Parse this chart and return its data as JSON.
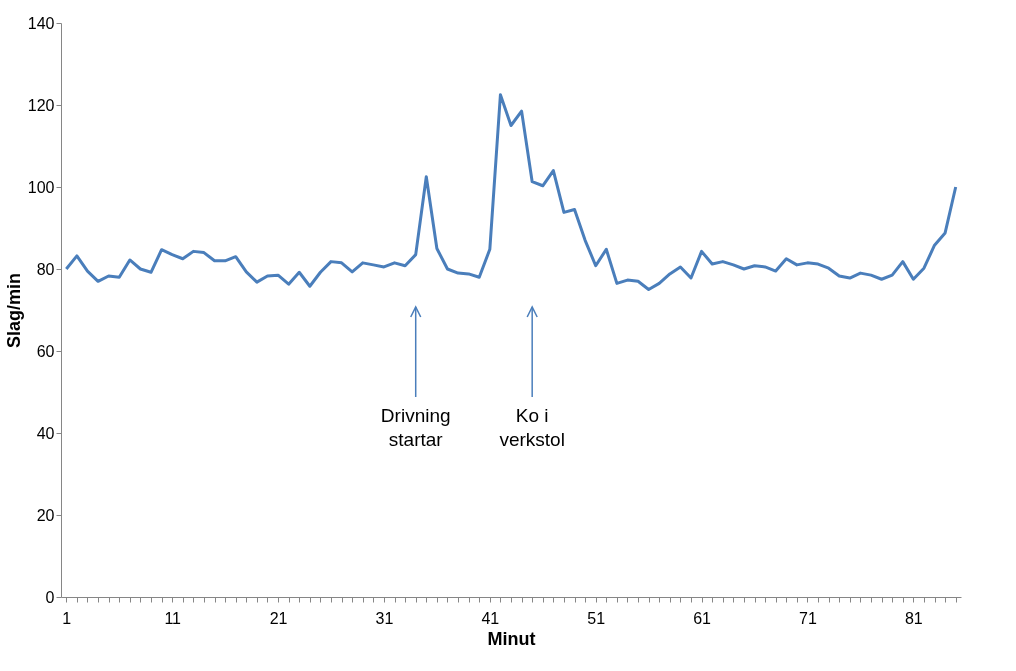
{
  "chart_data": {
    "type": "line",
    "xlabel": "Minut",
    "ylabel": "Slag/min",
    "categories": [
      "1",
      null,
      null,
      null,
      null,
      null,
      null,
      null,
      null,
      null,
      "11",
      null,
      null,
      null,
      null,
      null,
      null,
      null,
      null,
      null,
      "21",
      null,
      null,
      null,
      null,
      null,
      null,
      null,
      null,
      null,
      "31",
      null,
      null,
      null,
      null,
      null,
      null,
      null,
      null,
      null,
      "41",
      null,
      null,
      null,
      null,
      null,
      null,
      null,
      null,
      null,
      "51",
      null,
      null,
      null,
      null,
      null,
      null,
      null,
      null,
      null,
      "61",
      null,
      null,
      null,
      null,
      null,
      null,
      null,
      null,
      null,
      "71",
      null,
      null,
      null,
      null,
      null,
      null,
      null,
      null,
      null,
      "81",
      null,
      null,
      null,
      null
    ],
    "series": [
      {
        "color": "#4a7ebb",
        "values": [
          80,
          83.2,
          79.5,
          77,
          78.3,
          78,
          82.2,
          80,
          79.2,
          84.7,
          83.5,
          82.5,
          84.3,
          84,
          82,
          82,
          83,
          79.3,
          76.8,
          78.3,
          78.5,
          76.3,
          79.2,
          75.8,
          79.2,
          81.8,
          81.5,
          79.3,
          81.5,
          81,
          80.5,
          81.5,
          80.8,
          83.5,
          102.5,
          85,
          80,
          79,
          78.8,
          78,
          84.8,
          122.5,
          115,
          118.5,
          101.3,
          100.3,
          104,
          93.8,
          94.5,
          87,
          80.8,
          84.8,
          76.5,
          77.3,
          77,
          75,
          76.5,
          78.8,
          80.5,
          77.8,
          84.3,
          81.2,
          81.8,
          81,
          80,
          80.8,
          80.5,
          79.5,
          82.5,
          81,
          81.5,
          81.2,
          80.2,
          78.3,
          77.8,
          79,
          78.5,
          77.5,
          78.5,
          81.8,
          77.5,
          80.2,
          85.8,
          88.8,
          100
        ]
      }
    ],
    "ylim": [
      0,
      140
    ],
    "yticks": [
      0,
      20,
      40,
      60,
      80,
      100,
      120,
      140
    ],
    "grid": false,
    "marker": "none",
    "line_style": "solid",
    "annotations": [
      "Drivning\nstartar",
      "Ko i\nverkstol"
    ]
  }
}
